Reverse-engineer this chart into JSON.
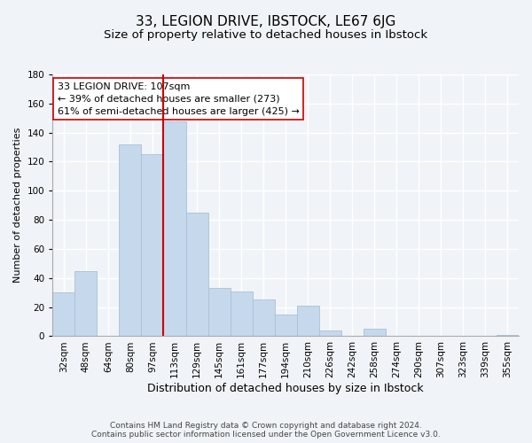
{
  "title": "33, LEGION DRIVE, IBSTOCK, LE67 6JG",
  "subtitle": "Size of property relative to detached houses in Ibstock",
  "xlabel": "Distribution of detached houses by size in Ibstock",
  "ylabel": "Number of detached properties",
  "bar_labels": [
    "32sqm",
    "48sqm",
    "64sqm",
    "80sqm",
    "97sqm",
    "113sqm",
    "129sqm",
    "145sqm",
    "161sqm",
    "177sqm",
    "194sqm",
    "210sqm",
    "226sqm",
    "242sqm",
    "258sqm",
    "274sqm",
    "290sqm",
    "307sqm",
    "323sqm",
    "339sqm",
    "355sqm"
  ],
  "bar_values": [
    30,
    45,
    0,
    132,
    125,
    148,
    85,
    33,
    31,
    25,
    15,
    21,
    4,
    0,
    5,
    0,
    0,
    0,
    0,
    0,
    1
  ],
  "bar_color": "#c6d9ec",
  "bar_edge_color": "#a8c0d6",
  "vline_x_index": 5,
  "vline_color": "#cc0000",
  "ylim": [
    0,
    180
  ],
  "yticks": [
    0,
    20,
    40,
    60,
    80,
    100,
    120,
    140,
    160,
    180
  ],
  "annotation_line1": "33 LEGION DRIVE: 107sqm",
  "annotation_line2": "← 39% of detached houses are smaller (273)",
  "annotation_line3": "61% of semi-detached houses are larger (425) →",
  "annotation_box_color": "#ffffff",
  "annotation_box_edge": "#cc0000",
  "footer_line1": "Contains HM Land Registry data © Crown copyright and database right 2024.",
  "footer_line2": "Contains public sector information licensed under the Open Government Licence v3.0.",
  "background_color": "#f0f4f8",
  "plot_bg_color": "#f0f4f8",
  "title_fontsize": 11,
  "subtitle_fontsize": 9.5,
  "xlabel_fontsize": 9,
  "ylabel_fontsize": 8,
  "tick_fontsize": 7.5,
  "annotation_fontsize": 8,
  "footer_fontsize": 6.5
}
